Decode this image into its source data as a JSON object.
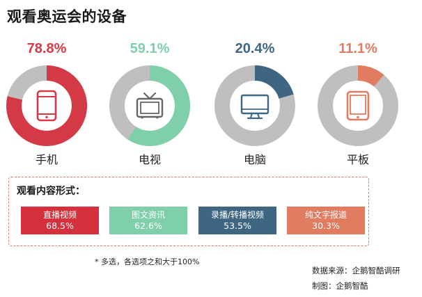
{
  "title": "观看奥运会的设备",
  "chart_data": {
    "type": "pie",
    "title": "观看奥运会的设备",
    "series": [
      {
        "name": "手机",
        "value": 78.8,
        "label": "78.8%",
        "color": "#d43a45",
        "icon": "smartphone-icon"
      },
      {
        "name": "电视",
        "value": 59.1,
        "label": "59.1%",
        "color": "#7fcfab",
        "icon": "tv-icon"
      },
      {
        "name": "电脑",
        "value": 20.4,
        "label": "20.4%",
        "color": "#3e6582",
        "icon": "monitor-icon"
      },
      {
        "name": "平板",
        "value": 11.1,
        "label": "11.1%",
        "color": "#e27c60",
        "icon": "tablet-icon"
      }
    ],
    "track_color": "#bfbfbf",
    "max": 100
  },
  "formats": {
    "title": "观看内容形式：",
    "items": [
      {
        "name": "直播视频",
        "value": "68.5%",
        "color": "#d4313c"
      },
      {
        "name": "图文资讯",
        "value": "62.6%",
        "color": "#7fcfab"
      },
      {
        "name": "录播/转播视频",
        "value": "53.5%",
        "color": "#3e6582"
      },
      {
        "name": "纯文字报道",
        "value": "30.3%",
        "color": "#e27c60"
      }
    ]
  },
  "footnote": "*  多选，各选项之和大于100%",
  "source": "数据来源：企鹅智酷调研",
  "credit": "制图：企鹅智酷"
}
